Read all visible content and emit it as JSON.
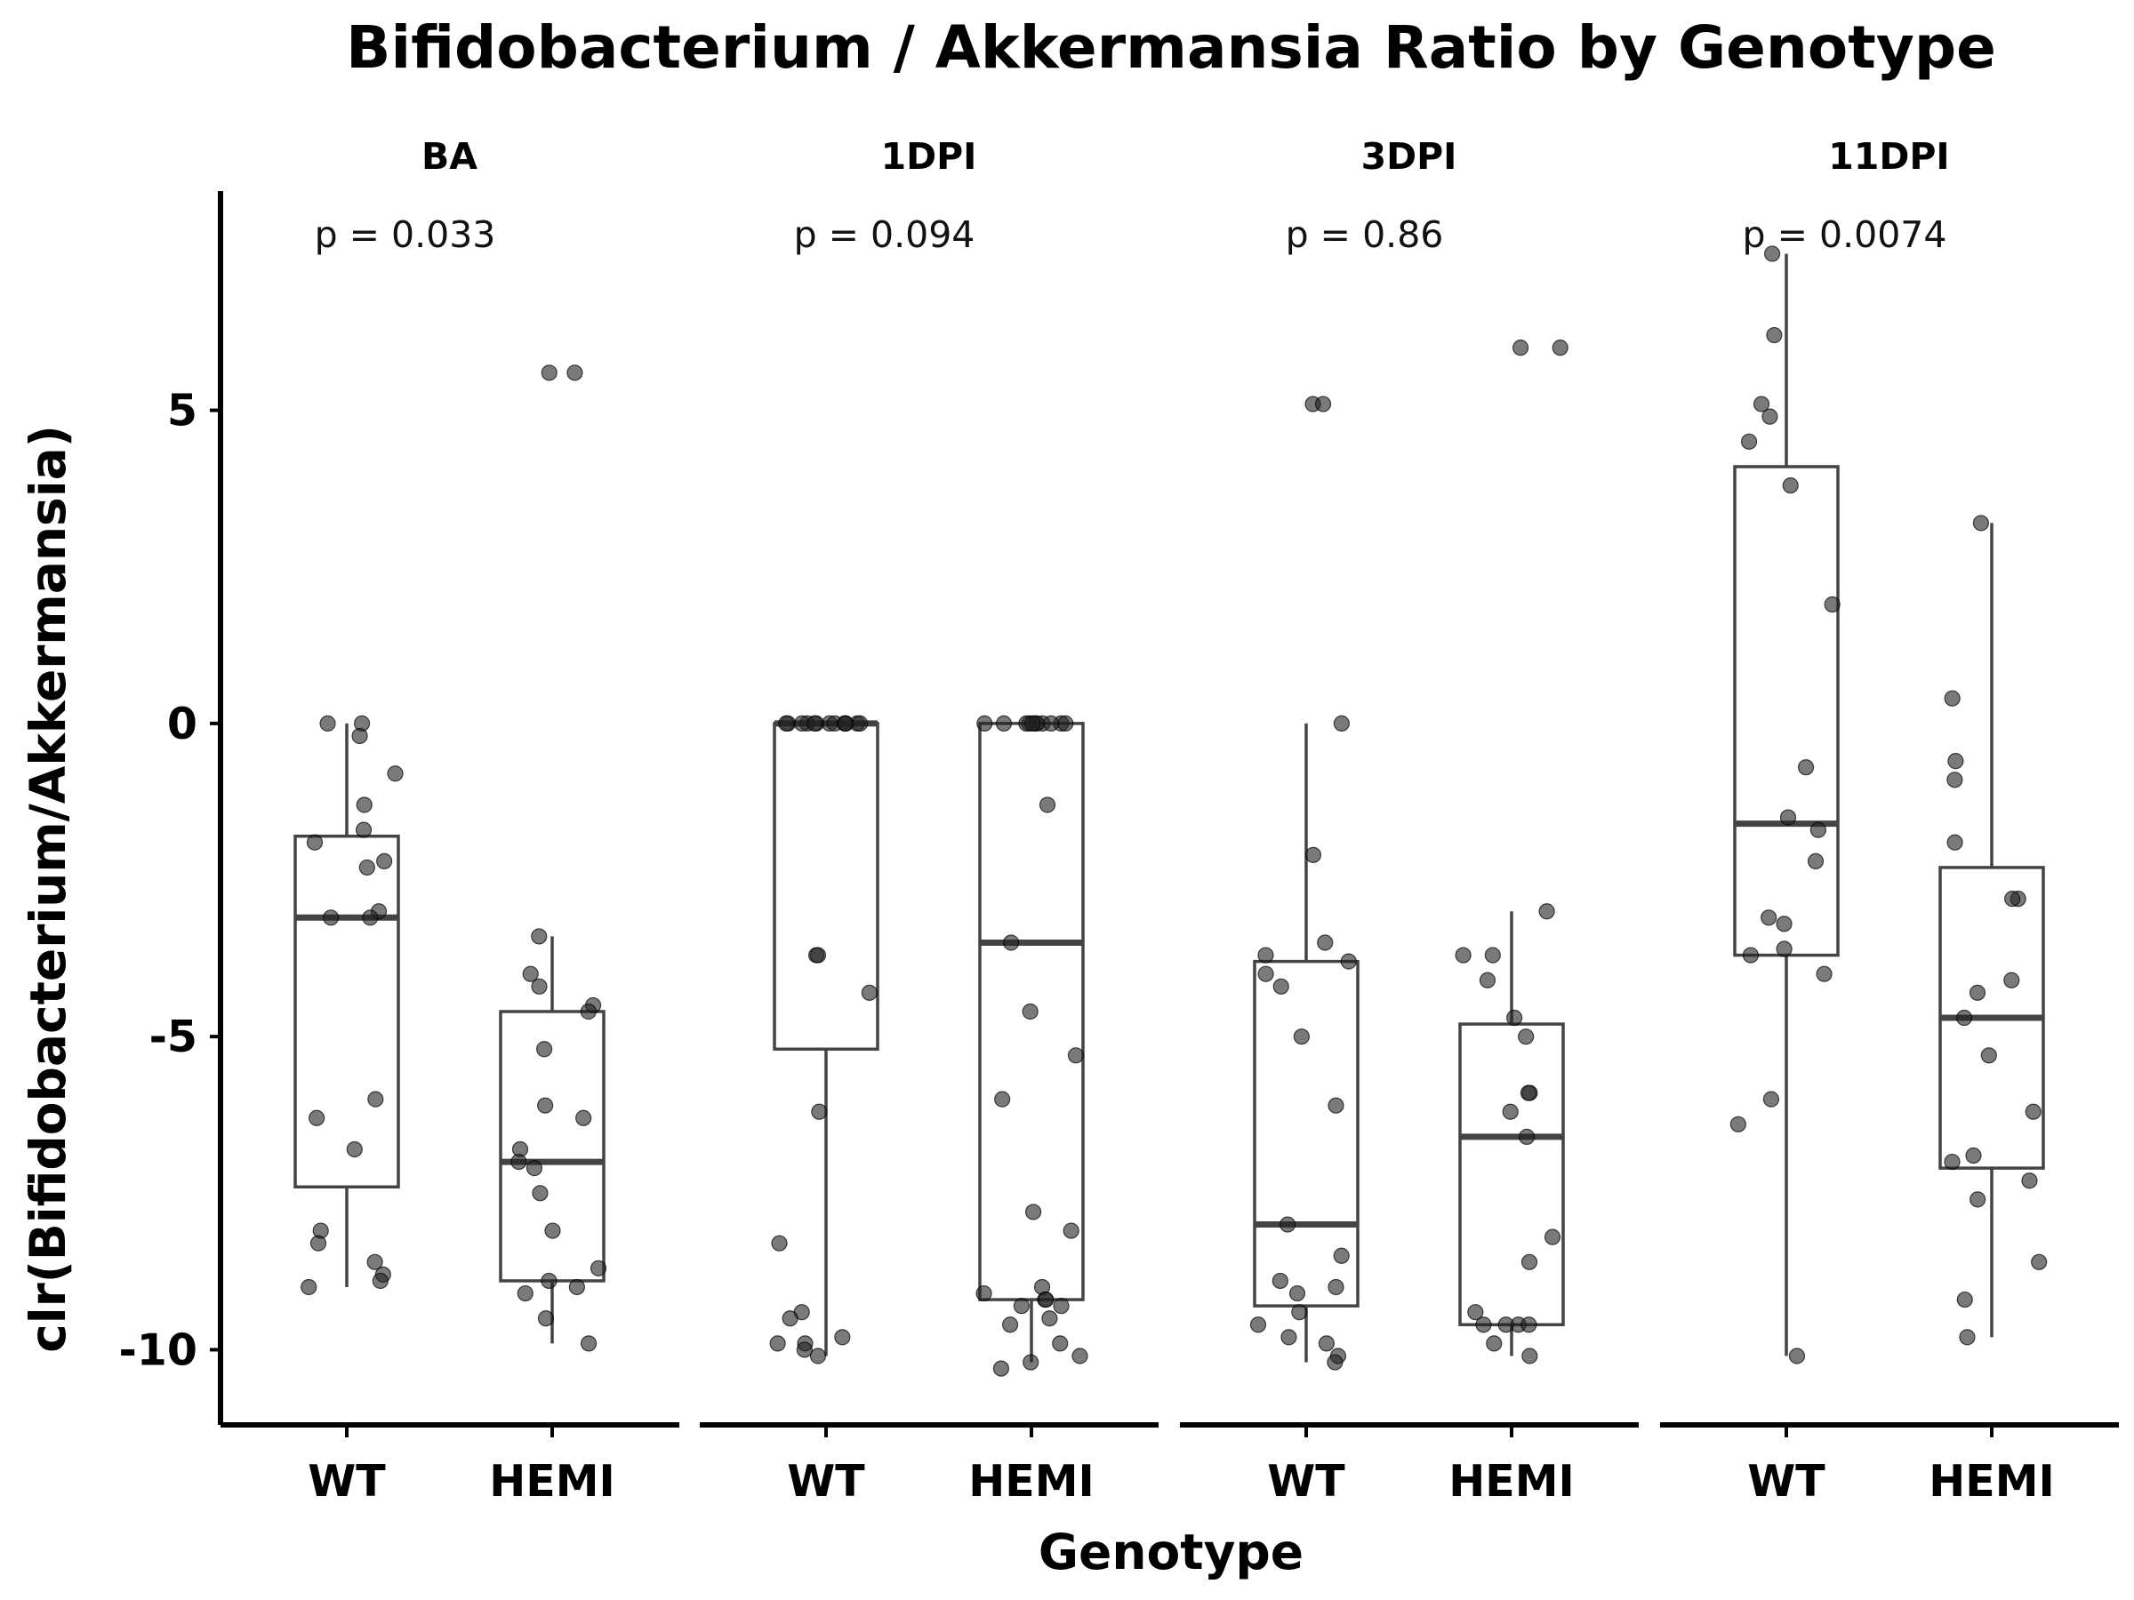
{
  "chart_data": {
    "type": "box",
    "title": "Bifidobacterium / Akkermansia Ratio by Genotype",
    "xlabel": "Genotype",
    "ylabel": "clr(Bifidobacterium/Akkermansia)",
    "y_ticks": [
      "-10",
      "-5",
      "0",
      "5"
    ],
    "y_tick_values": [
      -10,
      -5,
      0,
      5
    ],
    "ylim": [
      -11.2,
      8.5
    ],
    "categories": [
      "WT",
      "HEMI"
    ],
    "facets": [
      {
        "label": "BA",
        "p_label": "p = 0.033",
        "groups": [
          {
            "name": "WT",
            "box": {
              "q1": -7.4,
              "median": -3.1,
              "q3": -1.8,
              "whisker_low": -9.0,
              "whisker_high": 0.0
            },
            "points": [
              0.0,
              0.0,
              -0.2,
              -0.8,
              -1.3,
              -1.7,
              -1.9,
              -2.2,
              -2.3,
              -3.0,
              -3.1,
              -3.1,
              -6.0,
              -6.3,
              -6.8,
              -8.1,
              -8.3,
              -8.6,
              -8.8,
              -8.9,
              -9.0
            ]
          },
          {
            "name": "HEMI",
            "box": {
              "q1": -8.9,
              "median": -7.0,
              "q3": -4.6,
              "whisker_low": -9.9,
              "whisker_high": -3.4
            },
            "points": [
              5.6,
              5.6,
              -3.4,
              -4.0,
              -4.2,
              -4.5,
              -4.6,
              -5.2,
              -6.1,
              -6.3,
              -6.8,
              -7.0,
              -7.1,
              -7.5,
              -8.1,
              -8.7,
              -8.9,
              -9.0,
              -9.1,
              -9.5,
              -9.9
            ]
          }
        ]
      },
      {
        "label": "1DPI",
        "p_label": "p = 0.094",
        "groups": [
          {
            "name": "WT",
            "box": {
              "q1": -5.2,
              "median": 0.0,
              "q3": 0.0,
              "whisker_low": -10.1,
              "whisker_high": 0.0
            },
            "points": [
              0.0,
              0.0,
              0.0,
              0.0,
              0.0,
              0.0,
              0.0,
              0.0,
              0.0,
              0.0,
              0.0,
              0.0,
              0.0,
              -3.7,
              -3.7,
              -4.3,
              -6.2,
              -8.3,
              -9.4,
              -9.5,
              -9.8,
              -9.9,
              -9.9,
              -10.0,
              -10.1
            ]
          },
          {
            "name": "HEMI",
            "box": {
              "q1": -9.2,
              "median": -3.5,
              "q3": 0.0,
              "whisker_low": -10.2,
              "whisker_high": 0.0
            },
            "points": [
              0.0,
              0.0,
              0.0,
              0.0,
              0.0,
              0.0,
              0.0,
              0.0,
              0.0,
              0.0,
              0.0,
              -1.3,
              -3.5,
              -4.6,
              -5.3,
              -6.0,
              -7.8,
              -8.1,
              -9.0,
              -9.1,
              -9.2,
              -9.2,
              -9.3,
              -9.3,
              -9.5,
              -9.6,
              -9.9,
              -10.1,
              -10.2,
              -10.3
            ]
          }
        ]
      },
      {
        "label": "3DPI",
        "p_label": "p = 0.86",
        "groups": [
          {
            "name": "WT",
            "box": {
              "q1": -9.3,
              "median": -8.0,
              "q3": -3.8,
              "whisker_low": -10.2,
              "whisker_high": 0.0
            },
            "points": [
              5.1,
              5.1,
              0.0,
              -2.1,
              -3.5,
              -3.7,
              -3.8,
              -4.0,
              -4.2,
              -5.0,
              -6.1,
              -8.0,
              -8.5,
              -8.9,
              -9.0,
              -9.1,
              -9.4,
              -9.6,
              -9.8,
              -9.9,
              -10.1,
              -10.2
            ]
          },
          {
            "name": "HEMI",
            "box": {
              "q1": -9.6,
              "median": -6.6,
              "q3": -4.8,
              "whisker_low": -10.1,
              "whisker_high": -3.0
            },
            "points": [
              6.0,
              6.0,
              -3.0,
              -3.7,
              -3.7,
              -4.1,
              -4.7,
              -5.0,
              -5.9,
              -5.9,
              -6.2,
              -6.6,
              -8.2,
              -8.6,
              -9.4,
              -9.6,
              -9.6,
              -9.6,
              -9.6,
              -9.9,
              -10.1
            ]
          }
        ]
      },
      {
        "label": "11DPI",
        "p_label": "p = 0.0074",
        "groups": [
          {
            "name": "WT",
            "box": {
              "q1": -3.7,
              "median": -1.6,
              "q3": 4.1,
              "whisker_low": -10.1,
              "whisker_high": 7.5
            },
            "points": [
              7.5,
              6.2,
              5.1,
              4.9,
              4.5,
              3.8,
              1.9,
              -0.7,
              -1.5,
              -1.7,
              -2.2,
              -3.1,
              -3.2,
              -3.6,
              -3.7,
              -4.0,
              -6.0,
              -6.4,
              -10.1
            ]
          },
          {
            "name": "HEMI",
            "box": {
              "q1": -7.1,
              "median": -4.7,
              "q3": -2.3,
              "whisker_low": -9.8,
              "whisker_high": 3.2
            },
            "points": [
              3.2,
              0.4,
              -0.6,
              -0.9,
              -1.9,
              -2.8,
              -2.8,
              -4.1,
              -4.3,
              -4.7,
              -5.3,
              -6.2,
              -6.9,
              -7.0,
              -7.3,
              -7.6,
              -8.6,
              -9.2,
              -9.8
            ]
          }
        ]
      }
    ],
    "grid": false,
    "legend": "none"
  }
}
